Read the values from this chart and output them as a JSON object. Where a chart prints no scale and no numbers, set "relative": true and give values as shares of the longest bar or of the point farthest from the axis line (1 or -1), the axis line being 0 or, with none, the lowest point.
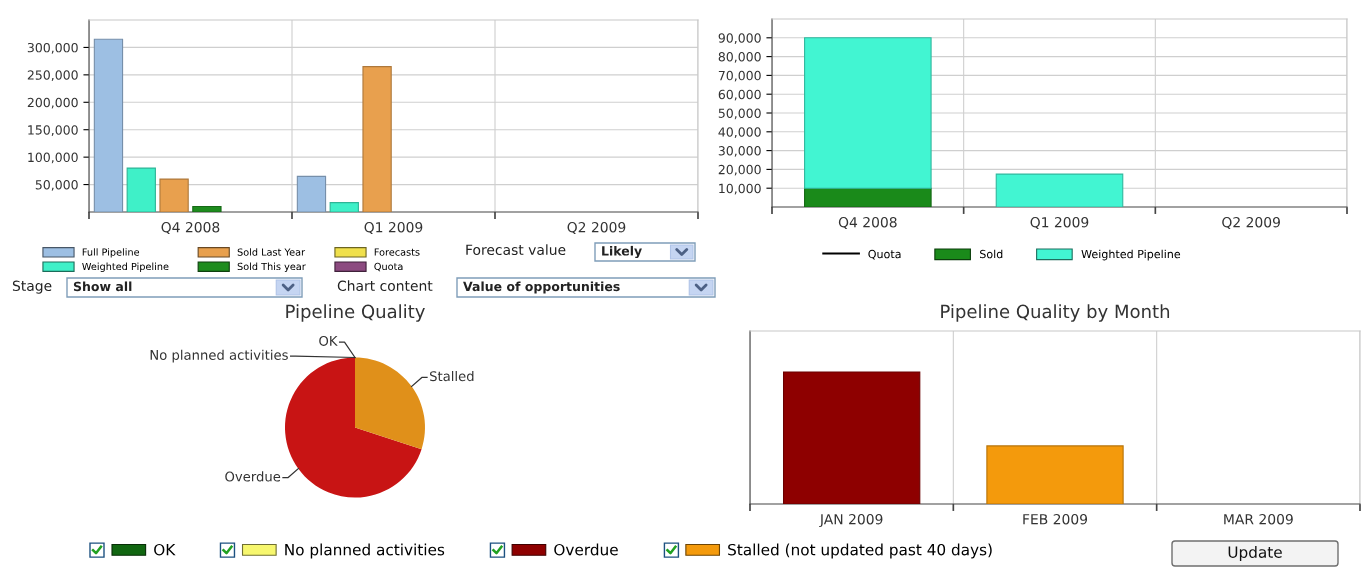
{
  "chart_data": [
    {
      "type": "bar",
      "categories": [
        "Q4 2008",
        "Q1 2009",
        "Q2 2009"
      ],
      "series": [
        {
          "name": "Full Pipeline",
          "color": "#9dbfe3",
          "values": [
            315000,
            65000,
            null
          ]
        },
        {
          "name": "Weighted Pipeline",
          "color": "#3ff0c8",
          "values": [
            80000,
            17000,
            null
          ]
        },
        {
          "name": "Sold Last Year",
          "color": "#e8a04e",
          "values": [
            60000,
            265000,
            null
          ]
        },
        {
          "name": "Sold This year",
          "color": "#1e8c1e",
          "values": [
            10000,
            null,
            null
          ]
        },
        {
          "name": "Forecasts",
          "color": "#f0e04c",
          "values": [
            null,
            null,
            null
          ]
        },
        {
          "name": "Quota",
          "color": "#8c4a80",
          "values": [
            null,
            null,
            null
          ]
        }
      ],
      "ylim": [
        0,
        350000
      ],
      "yticks": [
        {
          "value": 50000,
          "label": "50,000"
        },
        {
          "value": 100000,
          "label": "100,000"
        },
        {
          "value": 150000,
          "label": "150,000"
        },
        {
          "value": 200000,
          "label": "200,000"
        },
        {
          "value": 250000,
          "label": "250,000"
        },
        {
          "value": 300000,
          "label": "300,000"
        }
      ],
      "grid": true,
      "legend": "bottom left",
      "annotations": [
        "Forecast value",
        "Likely"
      ]
    },
    {
      "type": "bar",
      "stacked": true,
      "categories": [
        "Q4 2008",
        "Q1 2009",
        "Q2 2009"
      ],
      "series": [
        {
          "name": "Quota",
          "type": "line",
          "color": "#000000",
          "values": [
            null,
            null,
            null
          ]
        },
        {
          "name": "Sold",
          "color": "#1a8a1a",
          "values": [
            10000,
            null,
            null
          ]
        },
        {
          "name": "Weighted Pipeline",
          "color": "#42f5d2",
          "values": [
            80000,
            17500,
            null
          ]
        }
      ],
      "ylim": [
        0,
        100000
      ],
      "yticks": [
        {
          "value": 10000,
          "label": "10,000"
        },
        {
          "value": 20000,
          "label": "20,000"
        },
        {
          "value": 30000,
          "label": "30,000"
        },
        {
          "value": 40000,
          "label": "40,000"
        },
        {
          "value": 50000,
          "label": "50,000"
        },
        {
          "value": 60000,
          "label": "60,000"
        },
        {
          "value": 70000,
          "label": "70,000"
        },
        {
          "value": 80000,
          "label": "80,000"
        },
        {
          "value": 90000,
          "label": "90,000"
        }
      ],
      "grid": true,
      "legend": "bottom"
    },
    {
      "type": "pie",
      "title": "Pipeline Quality",
      "categories": [
        "OK",
        "No planned activities",
        "Overdue",
        "Stalled"
      ],
      "values": [
        0,
        0,
        70,
        30
      ],
      "colors": [
        null,
        null,
        "#c81414",
        "#e0901a"
      ],
      "annotations": [
        "Stage",
        "Show all",
        "Chart content",
        "Value of opportunities"
      ]
    },
    {
      "type": "bar",
      "stacked": true,
      "relative": true,
      "title": "Pipeline Quality by Month",
      "categories": [
        "JAN 2009",
        "FEB 2009",
        "MAR 2009"
      ],
      "series": [
        {
          "name": "OK",
          "color": "#116611",
          "values": [
            null,
            null,
            null
          ]
        },
        {
          "name": "No planned activities",
          "color": "#f7f76e",
          "values": [
            null,
            null,
            null
          ]
        },
        {
          "name": "Overdue",
          "color": "#8e0000",
          "values": [
            1,
            null,
            null
          ]
        },
        {
          "name": "Stalled (not updated past 40 days)",
          "color": "#f49a0c",
          "values": [
            null,
            0.44,
            null
          ]
        }
      ],
      "grid": "x",
      "legend": "bottom",
      "annotations": [
        "Update"
      ]
    }
  ]
}
